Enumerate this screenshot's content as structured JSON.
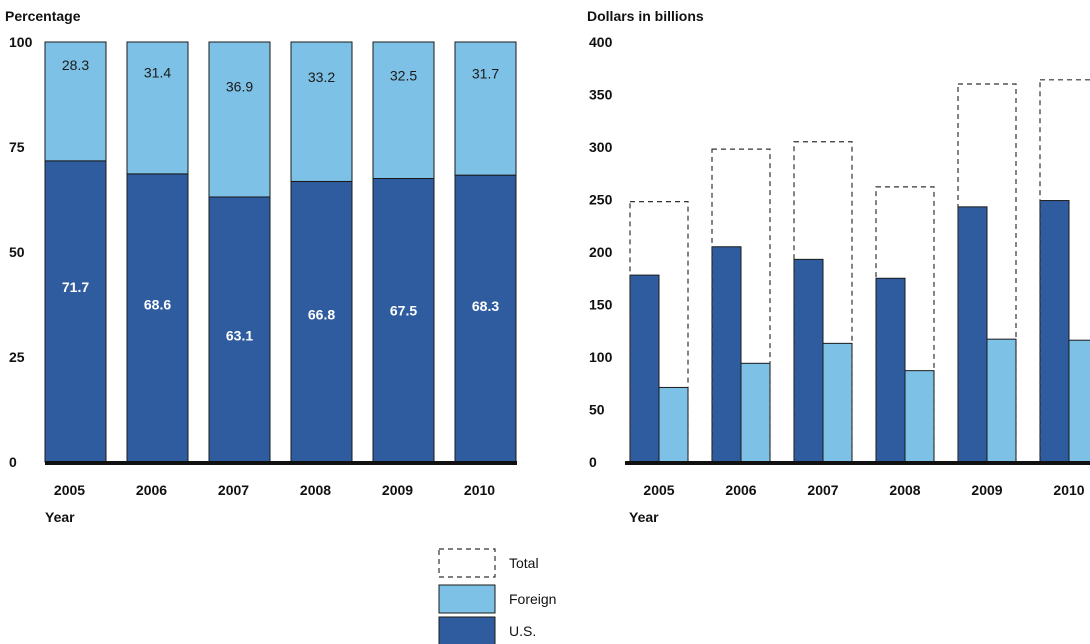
{
  "colors": {
    "us": "#2f5c9e",
    "foreign": "#7dc1e6",
    "axis": "#111111",
    "total_border": "#333333"
  },
  "legend": {
    "items": [
      {
        "key": "total",
        "label": "Total"
      },
      {
        "key": "foreign",
        "label": "Foreign"
      },
      {
        "key": "us",
        "label": "U.S."
      }
    ]
  },
  "chart_data": [
    {
      "type": "bar",
      "stacked": true,
      "ylabel": "Percentage",
      "xlabel": "Year",
      "ylim": [
        0,
        100
      ],
      "yticks": [
        0,
        25,
        50,
        75,
        100
      ],
      "categories": [
        "2005",
        "2006",
        "2007",
        "2008",
        "2009",
        "2010"
      ],
      "series": [
        {
          "name": "U.S.",
          "key": "us",
          "values": [
            71.7,
            68.6,
            63.1,
            66.8,
            67.5,
            68.3
          ],
          "labels": [
            "71.7",
            "68.6",
            "63.1",
            "66.8",
            "67.5",
            "68.3"
          ]
        },
        {
          "name": "Foreign",
          "key": "foreign",
          "values": [
            28.3,
            31.4,
            36.9,
            33.2,
            32.5,
            31.7
          ],
          "labels": [
            "28.3",
            "31.4",
            "36.9",
            "33.2",
            "32.5",
            "31.7"
          ]
        }
      ]
    },
    {
      "type": "bar",
      "ylabel": "Dollars in billions",
      "xlabel": "Year",
      "ylim": [
        0,
        400
      ],
      "yticks": [
        0,
        50,
        100,
        150,
        200,
        250,
        300,
        350,
        400
      ],
      "categories": [
        "2005",
        "2006",
        "2007",
        "2008",
        "2009",
        "2010"
      ],
      "series": [
        {
          "name": "Total",
          "key": "total",
          "values": [
            248,
            298,
            305,
            262,
            360,
            364
          ]
        },
        {
          "name": "U.S.",
          "key": "us",
          "values": [
            178,
            205,
            193,
            175,
            243,
            249
          ]
        },
        {
          "name": "Foreign",
          "key": "foreign",
          "values": [
            71,
            94,
            113,
            87,
            117,
            116
          ]
        }
      ]
    }
  ]
}
